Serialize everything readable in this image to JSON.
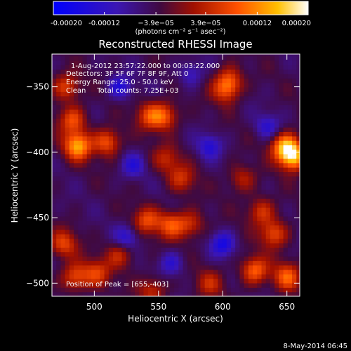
{
  "chart_data": {
    "type": "heatmap",
    "title": "Reconstructed RHESSI Image",
    "xlabel": "Heliocentric X (arcsec)",
    "ylabel": "Heliocentric Y (arcsec)",
    "xlim": [
      467,
      660
    ],
    "ylim": [
      -510,
      -325
    ],
    "x_ticks": [
      500,
      550,
      600,
      650
    ],
    "y_ticks": [
      -350,
      -400,
      -450,
      -500
    ],
    "colorbar": {
      "range": [
        -0.0002,
        0.0002
      ],
      "ticks": [
        "-0.00020",
        "-0.00012",
        "−3.9e−05",
        "3.9e−05",
        "0.00012",
        "0.00020"
      ],
      "tick_values": [
        -0.0002,
        -0.00012,
        -3.9e-05,
        3.9e-05,
        0.00012,
        0.0002
      ],
      "unit_label": "(photons cm⁻² s⁻¹ asec⁻²)"
    },
    "annotations": [
      "1-Aug-2012 23:57:22.000 to 00:03:22.000",
      "Detectors: 3F 5F 6F 7F 8F 9F, Att 0",
      "Energy Range: 25.0 - 50.0 keV",
      "Clean     Total counts: 7.25E+03",
      "Position of Peak = [655,-403]"
    ],
    "footer": "8-May-2014 06:45",
    "peak": {
      "x": 655,
      "y": -403
    },
    "colors": {
      "background": "#000000",
      "text": "#ffffff",
      "colormap": "blue-purple-red-yellow-white"
    },
    "hot_regions": [
      {
        "x": 487,
        "y": -395,
        "value": 0.00018
      },
      {
        "x": 510,
        "y": -392,
        "value": 0.00013
      },
      {
        "x": 483,
        "y": -375,
        "value": 0.00012
      },
      {
        "x": 478,
        "y": -350,
        "value": 0.00011
      },
      {
        "x": 476,
        "y": -470,
        "value": 0.00011
      },
      {
        "x": 485,
        "y": -495,
        "value": 0.00012
      },
      {
        "x": 502,
        "y": -492,
        "value": 0.0001
      },
      {
        "x": 520,
        "y": -478,
        "value": 9e-05
      },
      {
        "x": 543,
        "y": -372,
        "value": 0.0001
      },
      {
        "x": 555,
        "y": -372,
        "value": 0.00012
      },
      {
        "x": 556,
        "y": -405,
        "value": 8e-05
      },
      {
        "x": 568,
        "y": -420,
        "value": 9e-05
      },
      {
        "x": 541,
        "y": -452,
        "value": 0.00011
      },
      {
        "x": 560,
        "y": -455,
        "value": 0.00012
      },
      {
        "x": 575,
        "y": -455,
        "value": 9e-05
      },
      {
        "x": 605,
        "y": -345,
        "value": 0.00011
      },
      {
        "x": 602,
        "y": -353,
        "value": 9e-05
      },
      {
        "x": 615,
        "y": -420,
        "value": 8e-05
      },
      {
        "x": 630,
        "y": -445,
        "value": 0.0001
      },
      {
        "x": 655,
        "y": -403,
        "value": 0.0002
      },
      {
        "x": 648,
        "y": -395,
        "value": 0.00016
      },
      {
        "x": 640,
        "y": -462,
        "value": 0.00012
      },
      {
        "x": 625,
        "y": -490,
        "value": 0.00014
      },
      {
        "x": 650,
        "y": -495,
        "value": 0.00013
      },
      {
        "x": 590,
        "y": -500,
        "value": 8e-05
      },
      {
        "x": 545,
        "y": -505,
        "value": 9e-05
      }
    ],
    "cold_regions": [
      {
        "x": 530,
        "y": -410,
        "value": -8e-05
      },
      {
        "x": 520,
        "y": -350,
        "value": -0.0001
      },
      {
        "x": 525,
        "y": -465,
        "value": -9e-05
      },
      {
        "x": 590,
        "y": -395,
        "value": -9e-05
      },
      {
        "x": 600,
        "y": -470,
        "value": -0.00011
      },
      {
        "x": 635,
        "y": -380,
        "value": -8e-05
      },
      {
        "x": 575,
        "y": -340,
        "value": -7e-05
      },
      {
        "x": 560,
        "y": -485,
        "value": -8e-05
      }
    ]
  }
}
